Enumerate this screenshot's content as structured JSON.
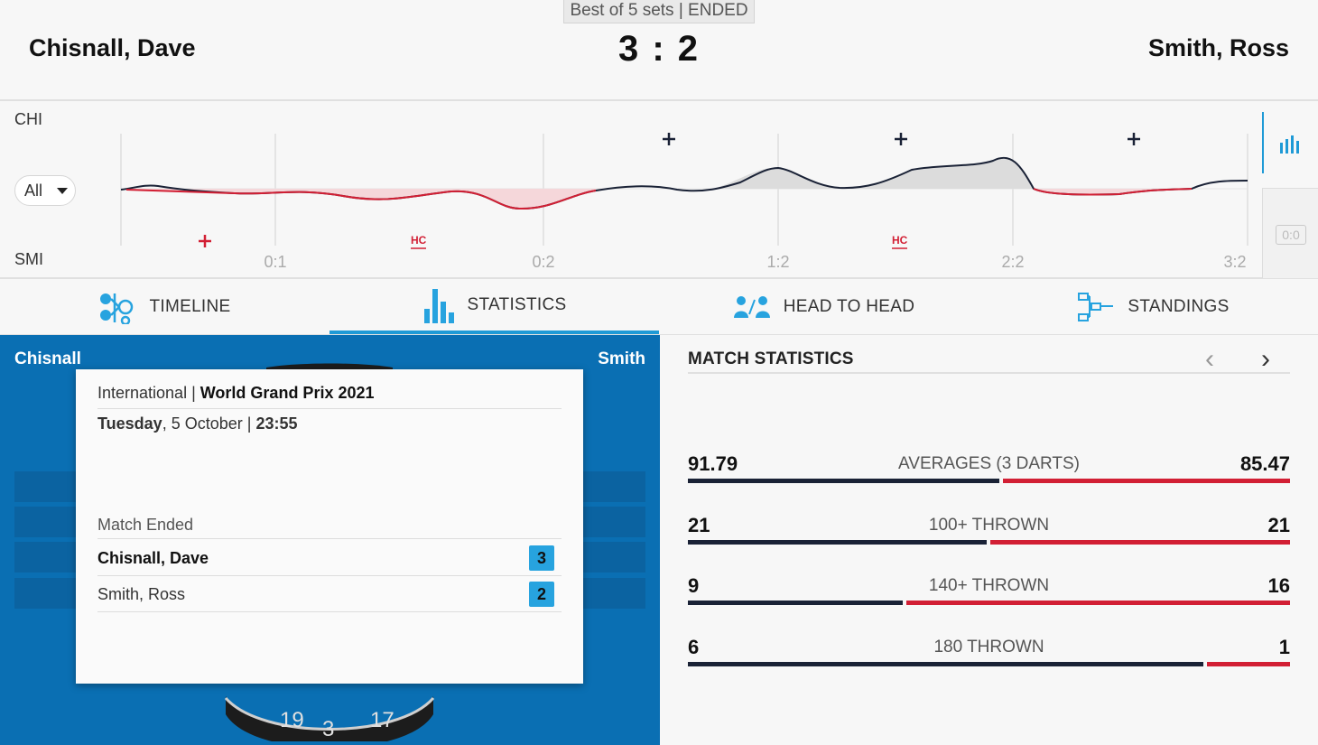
{
  "header": {
    "format": "Best of 5 sets | ENDED",
    "home_name": "Chisnall, Dave",
    "away_name": "Smith, Ross",
    "score": "3 : 2"
  },
  "momentum": {
    "home_abbr": "CHI",
    "away_abbr": "SMI",
    "filter": "All",
    "set_markers": [
      "0:1",
      "0:2",
      "1:2",
      "2:2",
      "3:2"
    ],
    "hc_label": "HC",
    "mini_score": "0:0",
    "colors": {
      "home": "#1a2236",
      "away": "#d21f34",
      "accent": "#1f9ad6"
    }
  },
  "tabs": [
    {
      "label": "TIMELINE",
      "icon": "timeline-icon"
    },
    {
      "label": "STATISTICS",
      "icon": "statistics-icon",
      "active": true
    },
    {
      "label": "HEAD TO HEAD",
      "icon": "head-to-head-icon"
    },
    {
      "label": "STANDINGS",
      "icon": "standings-icon"
    }
  ],
  "left_panel": {
    "home_short": "Chisnall",
    "away_short": "Smith",
    "board_numbers": [
      "19",
      "3",
      "17"
    ],
    "popup": {
      "category": "International",
      "separator": " | ",
      "tournament": "World Grand Prix 2021",
      "day": "Tuesday",
      "date": ", 5 October | ",
      "time": "23:55",
      "status": "Match Ended",
      "home_name": "Chisnall, Dave",
      "home_score": "3",
      "away_name": "Smith, Ross",
      "away_score": "2"
    }
  },
  "match_statistics": {
    "title": "MATCH STATISTICS",
    "rows": [
      {
        "label": "AVERAGES (3 DARTS)",
        "home": "91.79",
        "away": "85.47"
      },
      {
        "label": "100+ THROWN",
        "home": "21",
        "away": "21"
      },
      {
        "label": "140+ THROWN",
        "home": "9",
        "away": "16"
      },
      {
        "label": "180 THROWN",
        "home": "6",
        "away": "1"
      }
    ]
  }
}
